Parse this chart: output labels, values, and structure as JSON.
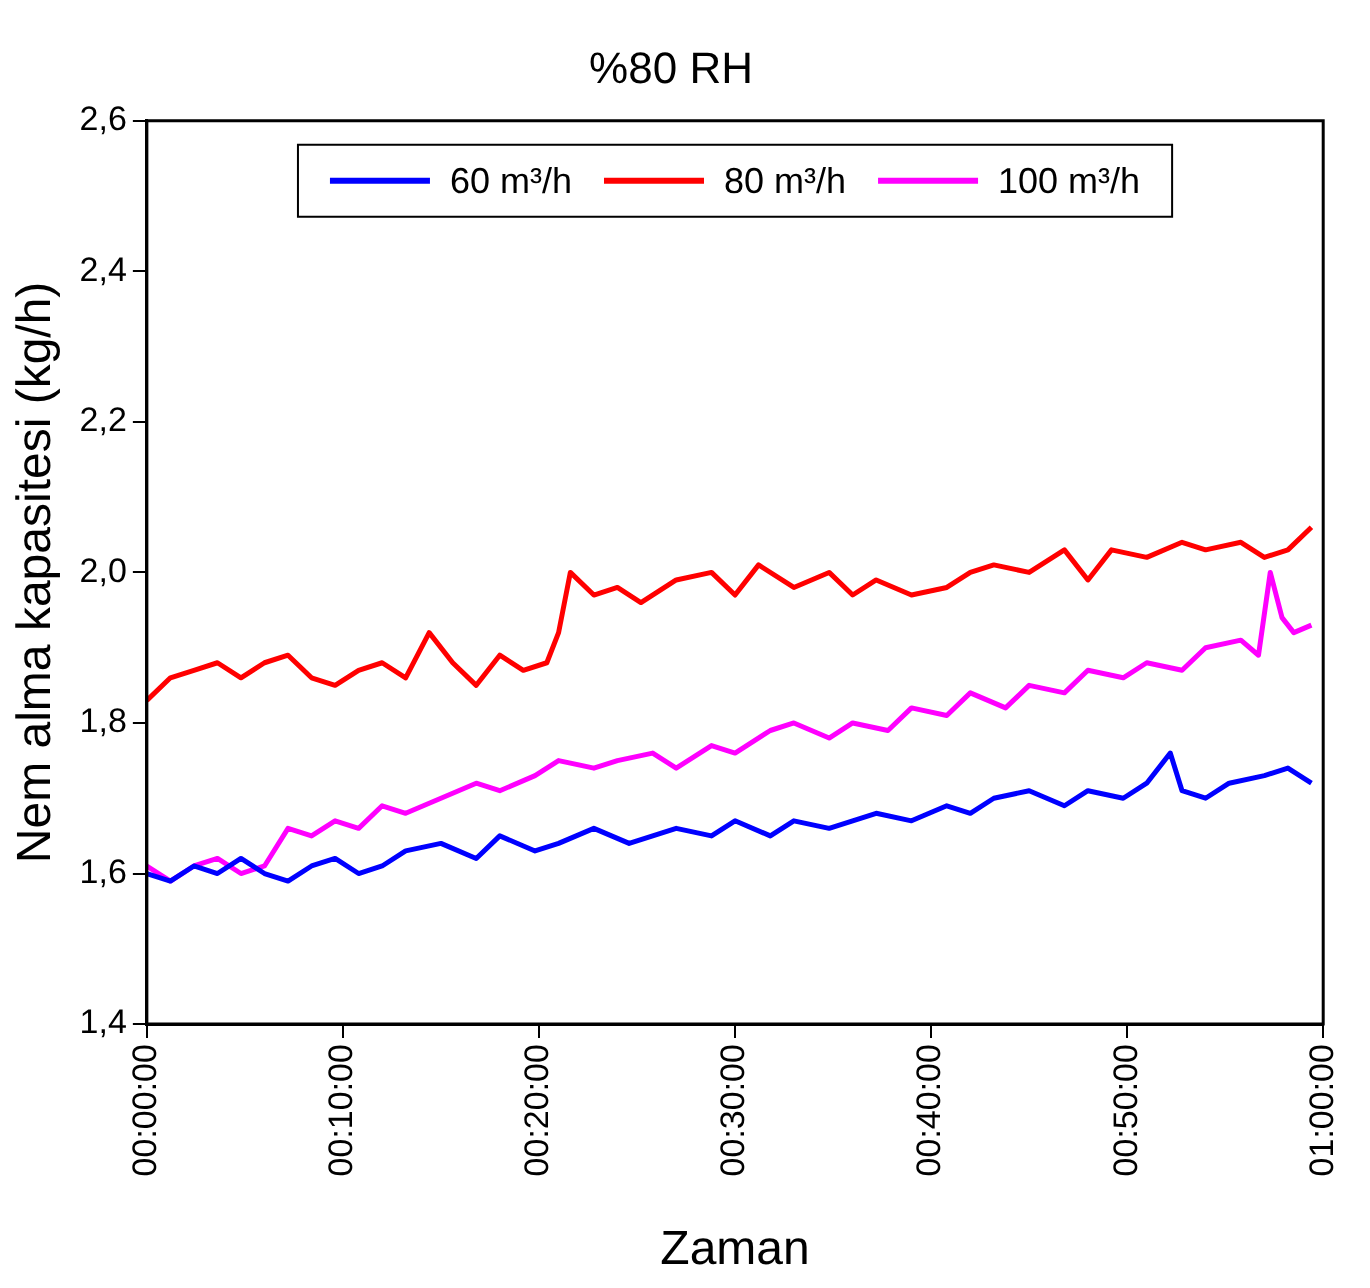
{
  "chart_data": {
    "type": "line",
    "title": "%80 RH",
    "xlabel": "Zaman",
    "ylabel": "Nem alma kapasitesi (kg/h)",
    "xlim": [
      0,
      1
    ],
    "xticks": [
      {
        "value": 0,
        "label": "00:00:00"
      },
      {
        "value": 0.16667,
        "label": "00:10:00"
      },
      {
        "value": 0.33333,
        "label": "00:20:00"
      },
      {
        "value": 0.5,
        "label": "00:30:00"
      },
      {
        "value": 0.66667,
        "label": "00:40:00"
      },
      {
        "value": 0.83333,
        "label": "00:50:00"
      },
      {
        "value": 1,
        "label": "01:00:00"
      }
    ],
    "ylim": [
      1.4,
      2.6
    ],
    "yticks": [
      {
        "value": 1.4,
        "label": "1,4"
      },
      {
        "value": 1.6,
        "label": "1,6"
      },
      {
        "value": 1.8,
        "label": "1,8"
      },
      {
        "value": 2.0,
        "label": "2,0"
      },
      {
        "value": 2.2,
        "label": "2,2"
      },
      {
        "value": 2.4,
        "label": "2,4"
      },
      {
        "value": 2.6,
        "label": "2,6"
      }
    ],
    "grid": false,
    "legend": "top",
    "marker": "none",
    "line_style": "solid",
    "series": [
      {
        "name": "60 m³/h",
        "color": "#0000ff",
        "x": [
          0,
          0.02,
          0.04,
          0.06,
          0.08,
          0.1,
          0.12,
          0.14,
          0.16,
          0.18,
          0.2,
          0.22,
          0.25,
          0.28,
          0.3,
          0.33,
          0.35,
          0.38,
          0.41,
          0.45,
          0.48,
          0.5,
          0.53,
          0.55,
          0.58,
          0.62,
          0.65,
          0.68,
          0.7,
          0.72,
          0.75,
          0.78,
          0.8,
          0.83,
          0.85,
          0.87,
          0.88,
          0.9,
          0.92,
          0.95,
          0.97,
          0.99
        ],
        "values": [
          1.6,
          1.59,
          1.61,
          1.6,
          1.62,
          1.6,
          1.59,
          1.61,
          1.62,
          1.6,
          1.61,
          1.63,
          1.64,
          1.62,
          1.65,
          1.63,
          1.64,
          1.66,
          1.64,
          1.66,
          1.65,
          1.67,
          1.65,
          1.67,
          1.66,
          1.68,
          1.67,
          1.69,
          1.68,
          1.7,
          1.71,
          1.69,
          1.71,
          1.7,
          1.72,
          1.76,
          1.71,
          1.7,
          1.72,
          1.73,
          1.74,
          1.72
        ]
      },
      {
        "name": "80 m³/h",
        "color": "#ff0000",
        "x": [
          0,
          0.02,
          0.04,
          0.06,
          0.08,
          0.1,
          0.12,
          0.14,
          0.16,
          0.18,
          0.2,
          0.22,
          0.24,
          0.26,
          0.28,
          0.3,
          0.32,
          0.34,
          0.35,
          0.36,
          0.38,
          0.4,
          0.42,
          0.45,
          0.48,
          0.5,
          0.52,
          0.55,
          0.58,
          0.6,
          0.62,
          0.65,
          0.68,
          0.7,
          0.72,
          0.75,
          0.78,
          0.8,
          0.82,
          0.85,
          0.88,
          0.9,
          0.93,
          0.95,
          0.97,
          0.99
        ],
        "values": [
          1.83,
          1.86,
          1.87,
          1.88,
          1.86,
          1.88,
          1.89,
          1.86,
          1.85,
          1.87,
          1.88,
          1.86,
          1.92,
          1.88,
          1.85,
          1.89,
          1.87,
          1.88,
          1.92,
          2.0,
          1.97,
          1.98,
          1.96,
          1.99,
          2.0,
          1.97,
          2.01,
          1.98,
          2.0,
          1.97,
          1.99,
          1.97,
          1.98,
          2.0,
          2.01,
          2.0,
          2.03,
          1.99,
          2.03,
          2.02,
          2.04,
          2.03,
          2.04,
          2.02,
          2.03,
          2.06
        ]
      },
      {
        "name": "100 m³/h",
        "color": "#ff00ff",
        "x": [
          0,
          0.02,
          0.04,
          0.06,
          0.08,
          0.1,
          0.12,
          0.14,
          0.16,
          0.18,
          0.2,
          0.22,
          0.25,
          0.28,
          0.3,
          0.33,
          0.35,
          0.38,
          0.4,
          0.43,
          0.45,
          0.48,
          0.5,
          0.53,
          0.55,
          0.58,
          0.6,
          0.63,
          0.65,
          0.68,
          0.7,
          0.73,
          0.75,
          0.78,
          0.8,
          0.83,
          0.85,
          0.88,
          0.9,
          0.93,
          0.945,
          0.955,
          0.965,
          0.975,
          0.99
        ],
        "values": [
          1.61,
          1.59,
          1.61,
          1.62,
          1.6,
          1.61,
          1.66,
          1.65,
          1.67,
          1.66,
          1.69,
          1.68,
          1.7,
          1.72,
          1.71,
          1.73,
          1.75,
          1.74,
          1.75,
          1.76,
          1.74,
          1.77,
          1.76,
          1.79,
          1.8,
          1.78,
          1.8,
          1.79,
          1.82,
          1.81,
          1.84,
          1.82,
          1.85,
          1.84,
          1.87,
          1.86,
          1.88,
          1.87,
          1.9,
          1.91,
          1.89,
          2.0,
          1.94,
          1.92,
          1.93
        ]
      }
    ]
  }
}
